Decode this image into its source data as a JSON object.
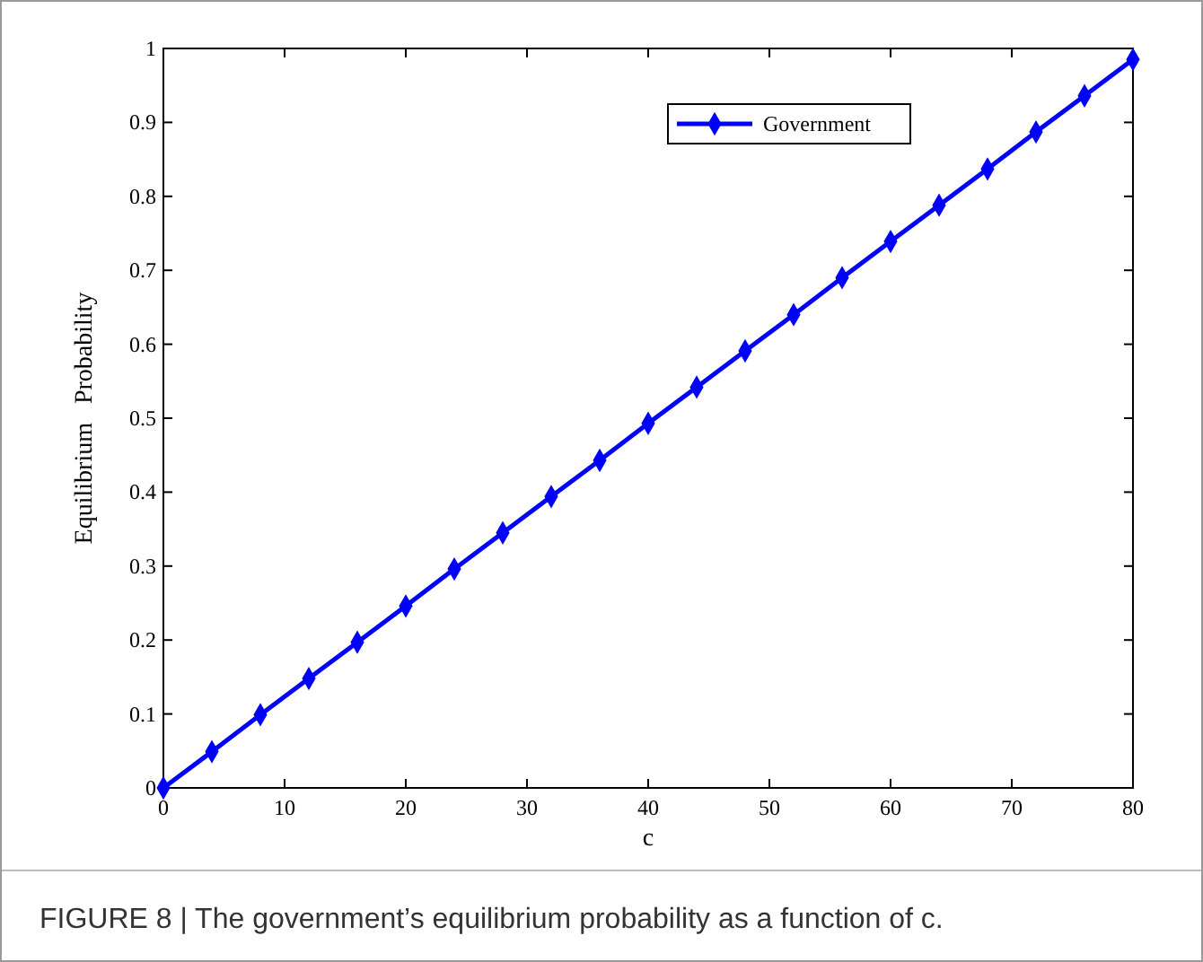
{
  "chart_data": {
    "type": "line",
    "xlabel": "c",
    "ylabel": "Equilibrium   Probability",
    "x": [
      0,
      4,
      8,
      12,
      16,
      20,
      24,
      28,
      32,
      36,
      40,
      44,
      48,
      52,
      56,
      60,
      64,
      68,
      72,
      76,
      80
    ],
    "series": [
      {
        "name": "Government",
        "color": "#0000ff",
        "values": [
          0,
          0.049,
          0.099,
          0.148,
          0.197,
          0.246,
          0.296,
          0.345,
          0.394,
          0.443,
          0.493,
          0.542,
          0.591,
          0.64,
          0.69,
          0.739,
          0.788,
          0.837,
          0.887,
          0.936,
          0.985
        ]
      }
    ],
    "xlim": [
      0,
      80
    ],
    "xticks": [
      0,
      10,
      20,
      30,
      40,
      50,
      60,
      70,
      80
    ],
    "ylim": [
      0,
      1
    ],
    "yticks": [
      0,
      0.1,
      0.2,
      0.3,
      0.4,
      0.5,
      0.6,
      0.7,
      0.8,
      0.9,
      1
    ],
    "marker": "diamond",
    "line_style": "solid",
    "legend": "top right",
    "annotations": [
      "FIGURE 8 | The government’s equilibrium probability as a function of c."
    ]
  }
}
